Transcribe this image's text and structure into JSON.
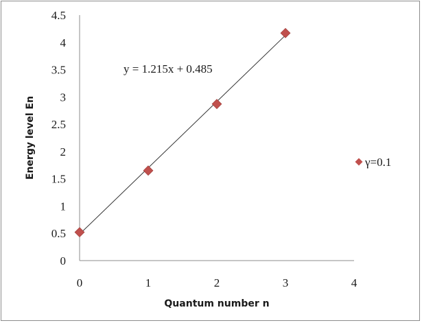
{
  "chart_data": {
    "type": "scatter",
    "xlabel": "Quantum number n",
    "ylabel": "Energy level En",
    "xlim": [
      0,
      4
    ],
    "ylim": [
      0,
      4.5
    ],
    "x_ticks": [
      "0",
      "1",
      "2",
      "3",
      "4"
    ],
    "y_ticks": [
      "0",
      "0.5",
      "1",
      "1.5",
      "2",
      "2.5",
      "3",
      "3.5",
      "4",
      "4.5"
    ],
    "grid": false,
    "legend_position": "right",
    "series": [
      {
        "name": "γ=0.1",
        "color": "#c0504d",
        "marker": "diamond",
        "x": [
          0,
          1,
          2,
          3
        ],
        "y": [
          0.52,
          1.65,
          2.87,
          4.17
        ]
      }
    ],
    "trendline": {
      "type": "linear",
      "slope": 1.215,
      "intercept": 0.485,
      "label": "y = 1.215x + 0.485"
    }
  }
}
